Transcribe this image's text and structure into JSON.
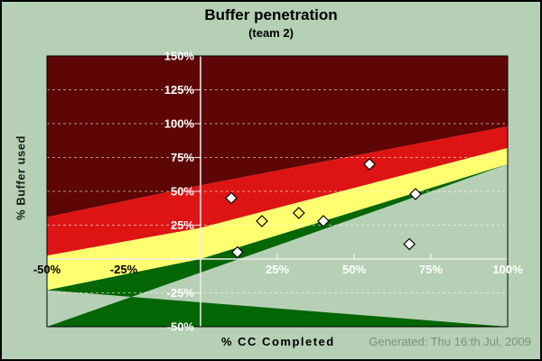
{
  "title": "Buffer penetration",
  "subtitle": "(team 2)",
  "y_axis_title": "% Buffer used",
  "x_axis_title": "% CC Completed",
  "footer": "Generated: Thu 16:th Jul, 2009",
  "colors": {
    "background": "#b6d0b6",
    "frame_border": "#000000",
    "zone_dark_red": "#5e0505",
    "zone_red": "#de1414",
    "zone_yellow": "#ffff70",
    "zone_green": "#056605",
    "gridline": "rgba(255,255,255,0.55)",
    "zero_line": "#ededed",
    "plot_border": "#000000",
    "tick_mark": "rgba(255,255,255,0.8)",
    "y_label": "#ffffff",
    "marker_fill": "#ffffff",
    "marker_stroke": "#000000",
    "footer_text": "#7f8f7f"
  },
  "chart_data": {
    "type": "scatter",
    "title": "Buffer penetration",
    "subtitle": "(team 2)",
    "xlabel": "% CC Completed",
    "ylabel": "% Buffer used",
    "xlim": [
      -50,
      100
    ],
    "ylim": [
      -50,
      150
    ],
    "grid": "horizontal-dashed",
    "legend": "none",
    "x_ticks": [
      {
        "value": -50,
        "label": "-50%",
        "label_color": "#000000",
        "tick": false
      },
      {
        "value": -25,
        "label": "-25%",
        "label_color": "#000000",
        "tick": true
      },
      {
        "value": 25,
        "label": "25%",
        "label_color": "#ffffff",
        "tick": true
      },
      {
        "value": 50,
        "label": "50%",
        "label_color": "#ffffff",
        "tick": true
      },
      {
        "value": 75,
        "label": "75%",
        "label_color": "#ffffff",
        "tick": true
      },
      {
        "value": 100,
        "label": "100%",
        "label_color": "#ffffff",
        "tick": false
      }
    ],
    "y_ticks": [
      {
        "value": 150,
        "label": "150%",
        "grid": false,
        "tick": false
      },
      {
        "value": 125,
        "label": "125%",
        "grid": true,
        "tick": true
      },
      {
        "value": 100,
        "label": "100%",
        "grid": true,
        "tick": true
      },
      {
        "value": 75,
        "label": "75%",
        "grid": true,
        "tick": true
      },
      {
        "value": 50,
        "label": "50%",
        "grid": true,
        "tick": true
      },
      {
        "value": 25,
        "label": "25%",
        "grid": true,
        "tick": true
      },
      {
        "value": -25,
        "label": "-25%",
        "grid": true,
        "tick": true
      },
      {
        "value": -50,
        "label": "-50%",
        "grid": false,
        "tick": false
      }
    ],
    "zones": [
      {
        "name": "dark_red",
        "color": "#5e0505"
      },
      {
        "name": "red",
        "color": "#de1414"
      },
      {
        "name": "yellow",
        "color": "#ffff70"
      },
      {
        "name": "green",
        "color": "#056605"
      }
    ],
    "zone_boundaries": [
      {
        "between": [
          "dark_red",
          "red"
        ],
        "points": [
          [
            -50,
            31
          ],
          [
            0,
            54.5
          ],
          [
            100,
            98
          ]
        ]
      },
      {
        "between": [
          "red",
          "yellow"
        ],
        "points": [
          [
            -50,
            2.5
          ],
          [
            0,
            23
          ],
          [
            100,
            82
          ]
        ]
      },
      {
        "between": [
          "yellow",
          "green"
        ],
        "points": [
          [
            -50,
            -23
          ],
          [
            0,
            0
          ],
          [
            100,
            70
          ]
        ]
      }
    ],
    "series": [
      {
        "name": "buffer-points-filled",
        "marker": "filled-diamond",
        "points": [
          [
            10,
            45
          ],
          [
            12,
            5
          ],
          [
            40,
            28
          ],
          [
            55,
            70
          ],
          [
            68,
            11
          ],
          [
            70,
            48
          ]
        ]
      },
      {
        "name": "buffer-points-open",
        "marker": "open-diamond",
        "points": [
          [
            20,
            28
          ],
          [
            32,
            34
          ]
        ]
      }
    ]
  }
}
